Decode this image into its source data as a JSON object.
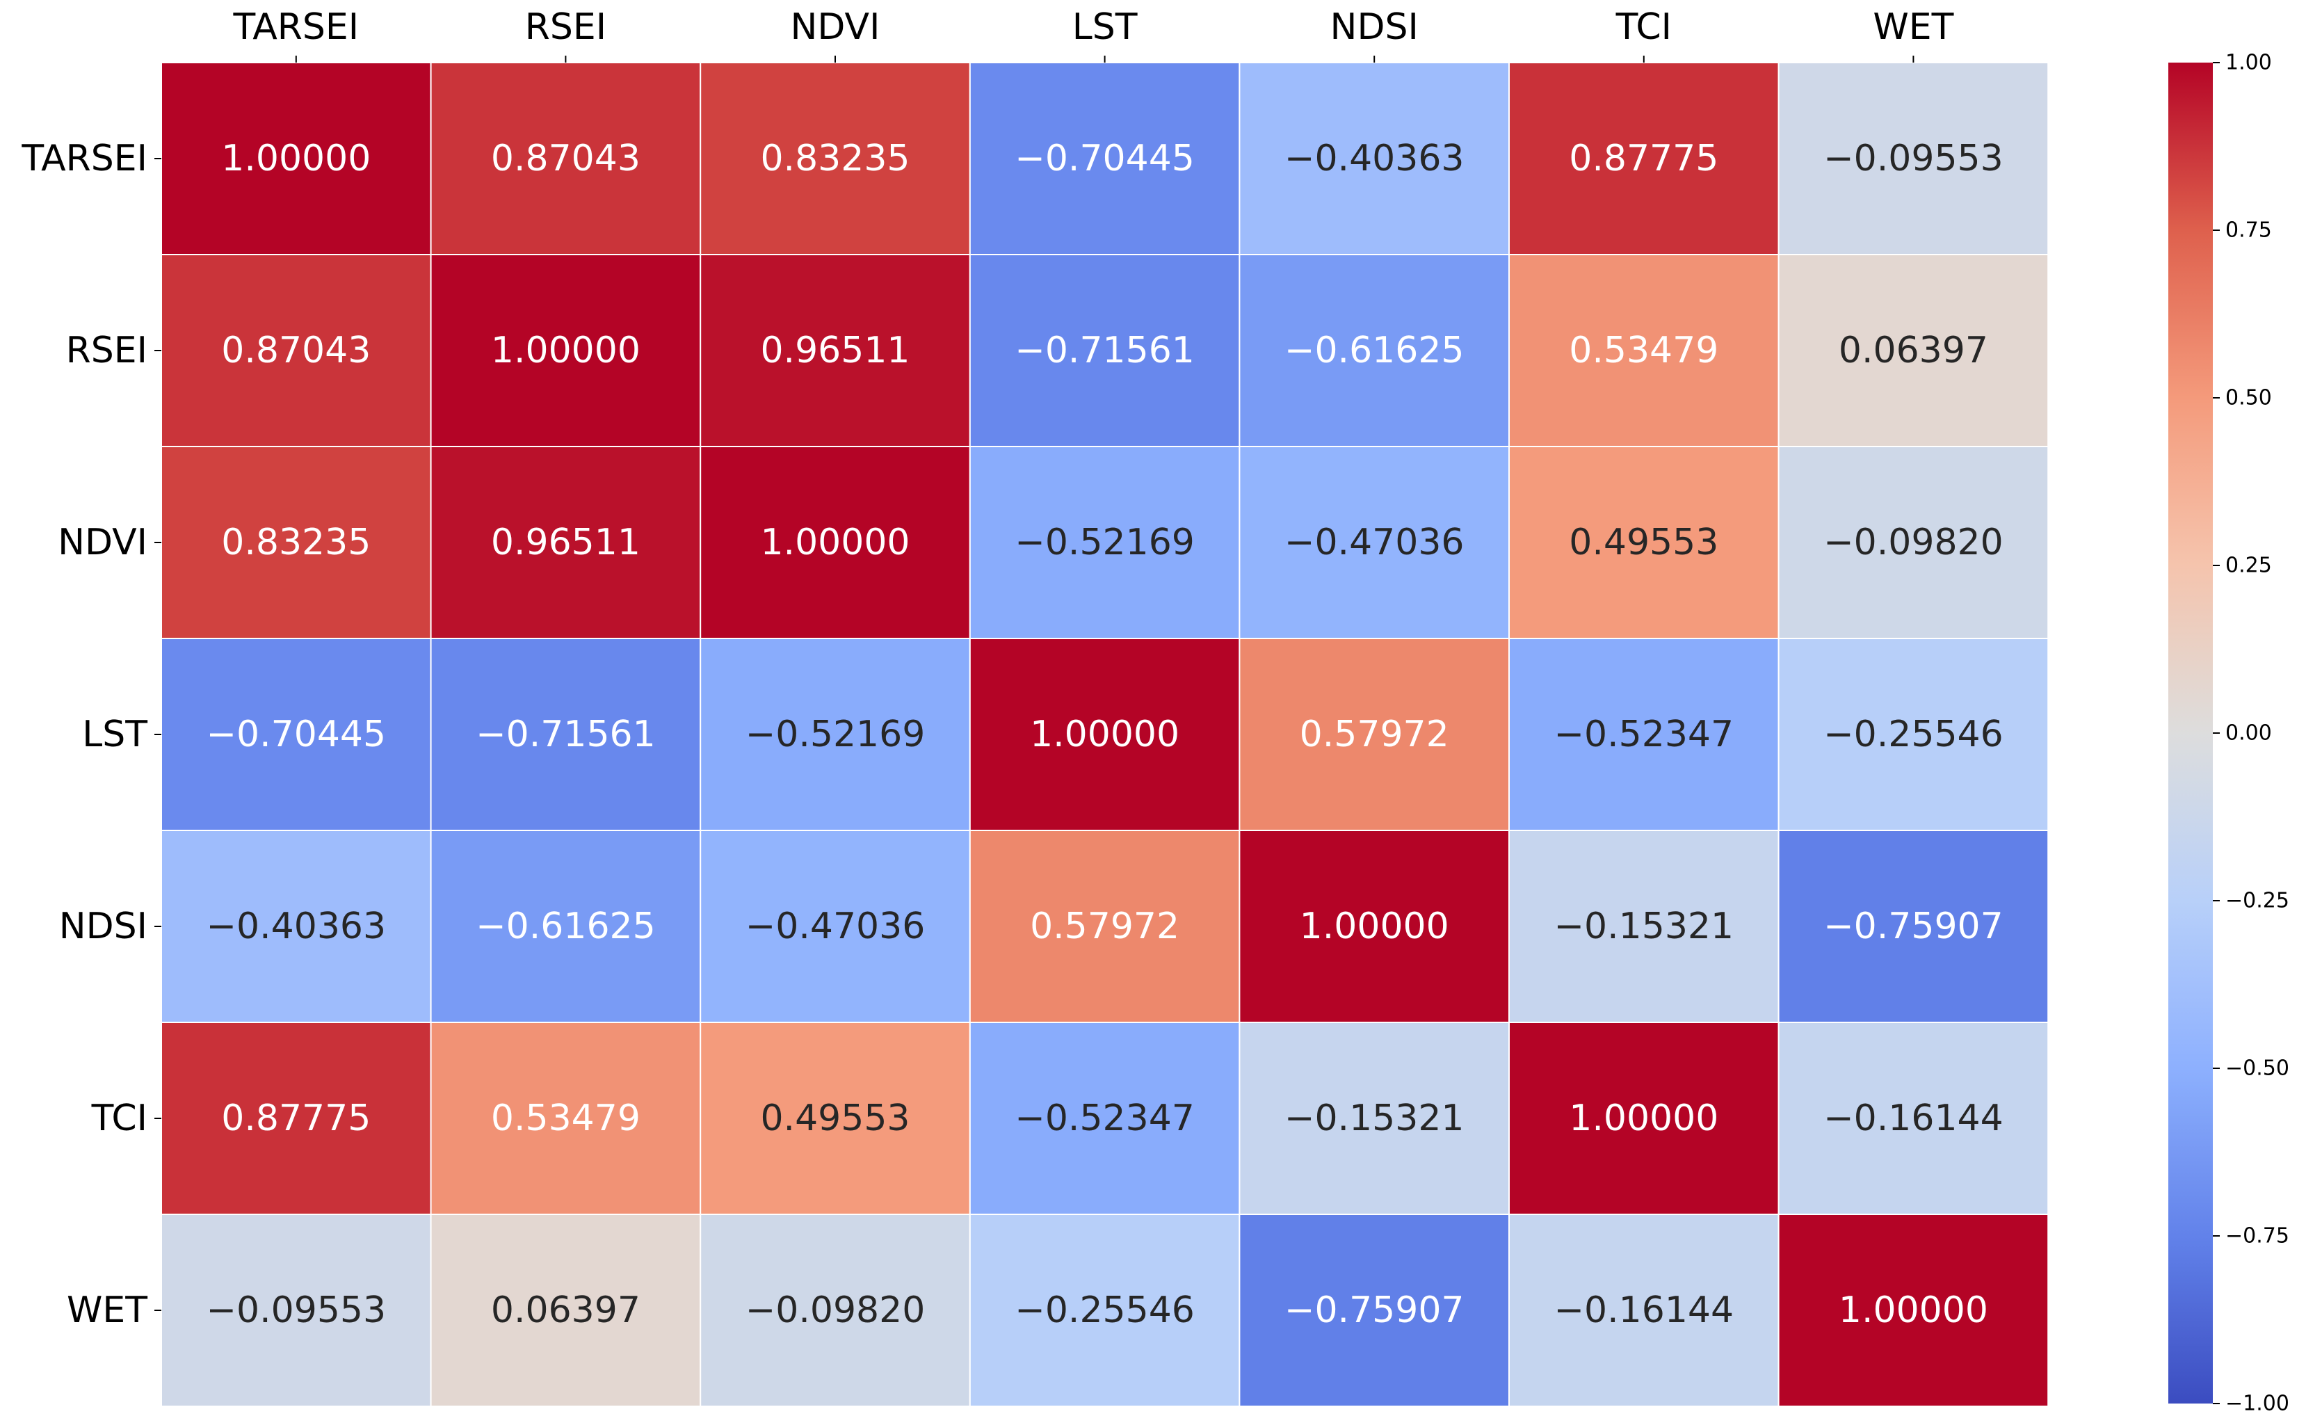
{
  "chart_data": {
    "type": "heatmap",
    "title": "",
    "xlabel": "",
    "ylabel": "",
    "x_labels": [
      "TARSEI",
      "RSEI",
      "NDVI",
      "LST",
      "NDSI",
      "TCI",
      "WET"
    ],
    "y_labels": [
      "TARSEI",
      "RSEI",
      "NDVI",
      "LST",
      "NDSI",
      "TCI",
      "WET"
    ],
    "values": [
      [
        1.0,
        0.87043,
        0.83235,
        -0.70445,
        -0.40363,
        0.87775,
        -0.09553
      ],
      [
        0.87043,
        1.0,
        0.96511,
        -0.71561,
        -0.61625,
        0.53479,
        0.06397
      ],
      [
        0.83235,
        0.96511,
        1.0,
        -0.52169,
        -0.47036,
        0.49553,
        -0.0982
      ],
      [
        -0.70445,
        -0.71561,
        -0.52169,
        1.0,
        0.57972,
        -0.52347,
        -0.25546
      ],
      [
        -0.40363,
        -0.61625,
        -0.47036,
        0.57972,
        1.0,
        -0.15321,
        -0.75907
      ],
      [
        0.87775,
        0.53479,
        0.49553,
        -0.52347,
        -0.15321,
        1.0,
        -0.16144
      ],
      [
        -0.09553,
        0.06397,
        -0.0982,
        -0.25546,
        -0.75907,
        -0.16144,
        1.0
      ]
    ],
    "cell_labels": [
      [
        "1.00000",
        "0.87043",
        "0.83235",
        "−0.70445",
        "−0.40363",
        "0.87775",
        "−0.09553"
      ],
      [
        "0.87043",
        "1.00000",
        "0.96511",
        "−0.71561",
        "−0.61625",
        "0.53479",
        "0.06397"
      ],
      [
        "0.83235",
        "0.96511",
        "1.00000",
        "−0.52169",
        "−0.47036",
        "0.49553",
        "−0.09820"
      ],
      [
        "−0.70445",
        "−0.71561",
        "−0.52169",
        "1.00000",
        "0.57972",
        "−0.52347",
        "−0.25546"
      ],
      [
        "−0.40363",
        "−0.61625",
        "−0.47036",
        "0.57972",
        "1.00000",
        "−0.15321",
        "−0.75907"
      ],
      [
        "0.87775",
        "0.53479",
        "0.49553",
        "−0.52347",
        "−0.15321",
        "1.00000",
        "−0.16144"
      ],
      [
        "−0.09553",
        "0.06397",
        "−0.09820",
        "−0.25546",
        "−0.75907",
        "−0.16144",
        "1.00000"
      ]
    ],
    "colormap": "coolwarm",
    "vmin": -1,
    "vmax": 1,
    "colorbar": {
      "ticks": [
        1.0,
        0.75,
        0.5,
        0.25,
        0.0,
        -0.25,
        -0.5,
        -0.75,
        -1.0
      ],
      "tick_labels": [
        "1.00",
        "0.75",
        "0.50",
        "0.25",
        "0.00",
        "−0.25",
        "−0.50",
        "−0.75",
        "−1.00"
      ]
    },
    "x_axis_position": "top",
    "grid": false,
    "cell_border_color": "#ffffff"
  }
}
